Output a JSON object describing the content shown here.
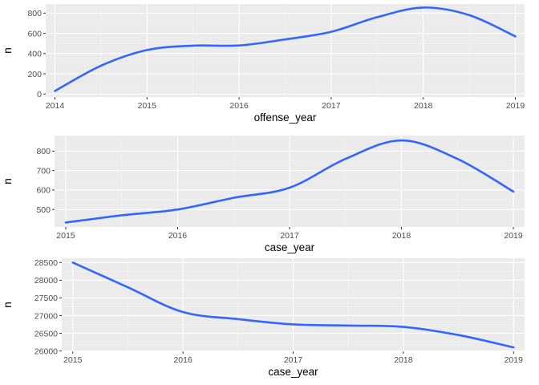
{
  "chart_data": [
    {
      "type": "line",
      "smooth": true,
      "xlabel": "offense_year",
      "ylabel": "n",
      "x_ticks": [
        2014,
        2015,
        2016,
        2017,
        2018,
        2019
      ],
      "y_ticks": [
        0,
        200,
        400,
        600,
        800
      ],
      "xlim": [
        2013.9,
        2019.1
      ],
      "ylim": [
        -30,
        890
      ],
      "grid": true,
      "color": "#3366ff",
      "x": [
        2014,
        2014.5,
        2015,
        2015.5,
        2016,
        2016.5,
        2017,
        2017.5,
        2018,
        2018.5,
        2019
      ],
      "values": [
        30,
        280,
        435,
        478,
        480,
        540,
        615,
        760,
        855,
        780,
        570
      ]
    },
    {
      "type": "line",
      "smooth": true,
      "xlabel": "case_year",
      "ylabel": "n",
      "x_ticks": [
        2015,
        2016,
        2017,
        2018,
        2019
      ],
      "y_ticks": [
        500,
        600,
        700,
        800
      ],
      "xlim": [
        2014.9,
        2019.1
      ],
      "ylim": [
        410,
        880
      ],
      "grid": true,
      "color": "#3366ff",
      "x": [
        2015,
        2015.5,
        2016,
        2016.5,
        2017,
        2017.5,
        2018,
        2018.5,
        2019
      ],
      "values": [
        433,
        470,
        500,
        560,
        612,
        760,
        855,
        760,
        592
      ]
    },
    {
      "type": "line",
      "smooth": true,
      "xlabel": "case_year",
      "ylabel": "n",
      "x_ticks": [
        2015,
        2016,
        2017,
        2018,
        2019
      ],
      "y_ticks": [
        26000,
        26500,
        27000,
        27500,
        28000,
        28500
      ],
      "xlim": [
        2014.9,
        2019.1
      ],
      "ylim": [
        25990,
        28620
      ],
      "grid": true,
      "color": "#3366ff",
      "x": [
        2015,
        2015.5,
        2016,
        2016.5,
        2017,
        2017.5,
        2018,
        2018.5,
        2019
      ],
      "values": [
        28500,
        27800,
        27100,
        26900,
        26750,
        26720,
        26680,
        26450,
        26100
      ]
    }
  ]
}
